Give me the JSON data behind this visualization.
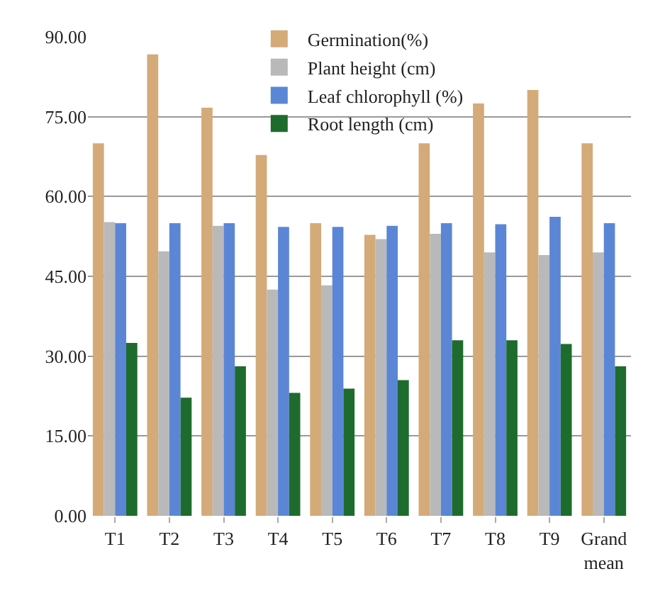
{
  "chart_data": {
    "type": "bar",
    "categories": [
      "T1",
      "T2",
      "T3",
      "T4",
      "T5",
      "T6",
      "T7",
      "T8",
      "T9",
      "Grand mean"
    ],
    "series": [
      {
        "name": "Germination(%)",
        "color": "#d4aa78",
        "values": [
          70,
          86.7,
          76.7,
          67.8,
          55,
          52.8,
          70,
          77.5,
          80,
          70
        ]
      },
      {
        "name": "Plant height (cm)",
        "color": "#b9b9b9",
        "values": [
          55.2,
          49.7,
          54.5,
          42.5,
          43.3,
          52,
          53,
          49.5,
          49,
          49.5
        ]
      },
      {
        "name": "Leaf chlorophyll (%)",
        "color": "#5b86d6",
        "values": [
          55,
          55,
          55,
          54.3,
          54.3,
          54.5,
          55,
          54.8,
          56.2,
          55
        ]
      },
      {
        "name": "Root length (cm)",
        "color": "#1e6b2e",
        "values": [
          32.5,
          22.2,
          28.1,
          23.1,
          23.9,
          25.5,
          33,
          33,
          32.3,
          28.1
        ]
      }
    ],
    "ylim": [
      0,
      90
    ],
    "yticks": [
      {
        "value": 0,
        "label": "0.00"
      },
      {
        "value": 15,
        "label": "15.00"
      },
      {
        "value": 30,
        "label": "30.00"
      },
      {
        "value": 45,
        "label": "45.00"
      },
      {
        "value": 60,
        "label": "60.00"
      },
      {
        "value": 75,
        "label": "75.00"
      },
      {
        "value": 90,
        "label": "90.00"
      }
    ],
    "grid": "y",
    "legend": "top"
  }
}
